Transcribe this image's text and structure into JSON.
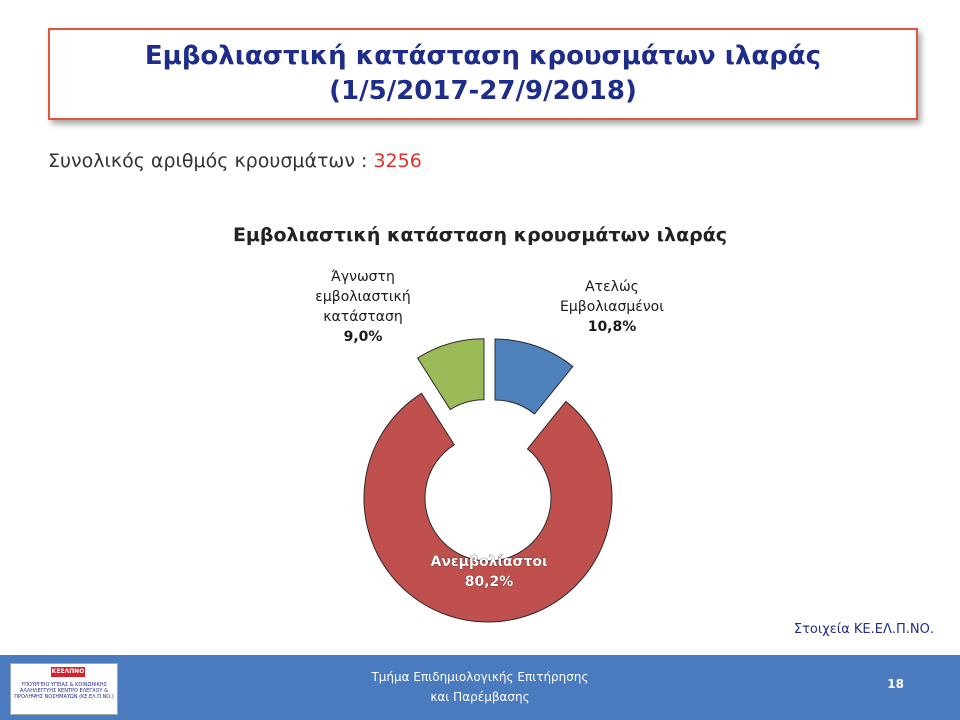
{
  "header": {
    "title_line1": "Εμβολιαστική κατάσταση κρουσμάτων ιλαράς",
    "title_line2": "(1/5/2017-27/9/2018)"
  },
  "summary": {
    "label": "Συνολικός αριθμός κρουσμάτων : ",
    "value": "3256"
  },
  "source": "Στοιχεία ΚΕ.ΕΛ.Π.ΝΟ.",
  "footer": {
    "line1": "Τμήμα Επιδημιολογικής Επιτήρησης",
    "line2": "και Παρέμβασης",
    "page_number": "18",
    "logo_header": "ΚΕΕΛΠΝΟ",
    "logo_text": "ΥΠΟΥΡΓΕΙΟ ΥΓΕΙΑΣ & ΚΟΙΝΩΝΙΚΗΣ ΑΛΛΗΛΕΓΓΥΗΣ ΚΕΝΤΡΟ ΕΛΕΓΧΟΥ & ΠΡΟΛΗΨΗΣ ΝΟΣΗΜΑΤΩΝ (ΚΕ.ΕΛ.Π.ΝΟ.)"
  },
  "chart_data": {
    "type": "pie",
    "title": "Εμβολιαστική κατάσταση κρουσμάτων ιλαράς",
    "slices": [
      {
        "label": [
          "Ατελώς",
          "Εμβολιασμένοι"
        ],
        "value_label": "10,8%",
        "value": 10.8,
        "color": "#4f81bd"
      },
      {
        "label": [
          "Ανεμβολίαστοι"
        ],
        "value_label": "80,2%",
        "value": 80.2,
        "color": "#c0504d"
      },
      {
        "label": [
          "Άγνωστη",
          "εμβολιαστική",
          "κατάσταση"
        ],
        "value_label": "9,0%",
        "value": 9.0,
        "color": "#9bbb59"
      }
    ]
  }
}
